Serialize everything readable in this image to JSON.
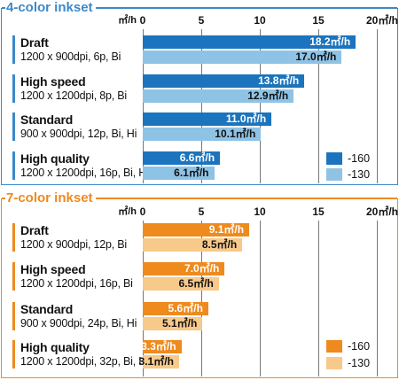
{
  "chart_data": [
    {
      "type": "bar",
      "orientation": "horizontal",
      "title": "4-color inkset",
      "unit_label": "㎡/h",
      "xlim": [
        0,
        20
      ],
      "tick_values": [
        0,
        5,
        10,
        15,
        20
      ],
      "tick_labels": [
        "0",
        "5",
        "10",
        "15",
        "20㎡/h"
      ],
      "grid": true,
      "legend_position": "bottom-right",
      "colors": {
        "-160": "#1b74bd",
        "-130": "#8fc3e6",
        "accent": "#3c89c9"
      },
      "categories": [
        {
          "name": "Draft",
          "desc": "1200 x 900dpi, 6p, Bi"
        },
        {
          "name": "High speed",
          "desc": "1200 x 1200dpi, 8p, Bi"
        },
        {
          "name": "Standard",
          "desc": "900 x 900dpi, 12p, Bi, Hi"
        },
        {
          "name": "High quality",
          "desc": "1200 x 1200dpi, 16p, Bi, Hi"
        }
      ],
      "series": [
        {
          "name": "-160",
          "values": [
            18.2,
            13.8,
            11.0,
            6.6
          ],
          "labels": [
            "18.2㎡/h",
            "13.8㎡/h",
            "11.0㎡/h",
            "6.6㎡/h"
          ]
        },
        {
          "name": "-130",
          "values": [
            17.0,
            12.9,
            10.1,
            6.1
          ],
          "labels": [
            "17.0㎡/h",
            "12.9㎡/h",
            "10.1㎡/h",
            "6.1㎡/h"
          ]
        }
      ]
    },
    {
      "type": "bar",
      "orientation": "horizontal",
      "title": "7-color inkset",
      "unit_label": "㎡/h",
      "xlim": [
        0,
        20
      ],
      "tick_values": [
        0,
        5,
        10,
        15,
        20
      ],
      "tick_labels": [
        "0",
        "5",
        "10",
        "15",
        "20㎡/h"
      ],
      "grid": true,
      "legend_position": "bottom-right",
      "colors": {
        "-160": "#ee8a1e",
        "-130": "#f7c98a",
        "accent": "#ee8a1e"
      },
      "categories": [
        {
          "name": "Draft",
          "desc": "1200 x 900dpi, 12p, Bi"
        },
        {
          "name": "High speed",
          "desc": "1200 x 1200dpi, 16p, Bi"
        },
        {
          "name": "Standard",
          "desc": "900 x 900dpi, 24p, Bi, Hi"
        },
        {
          "name": "High quality",
          "desc": "1200 x 1200dpi, 32p, Bi, Hi"
        }
      ],
      "series": [
        {
          "name": "-160",
          "values": [
            9.1,
            7.0,
            5.6,
            3.3
          ],
          "labels": [
            "9.1㎡/h",
            "7.0㎡/h",
            "5.6㎡/h",
            "3.3㎡/h"
          ]
        },
        {
          "name": "-130",
          "values": [
            8.5,
            6.5,
            5.1,
            3.1
          ],
          "labels": [
            "8.5㎡/h",
            "6.5㎡/h",
            "5.1㎡/h",
            "3.1㎡/h"
          ]
        }
      ]
    }
  ]
}
